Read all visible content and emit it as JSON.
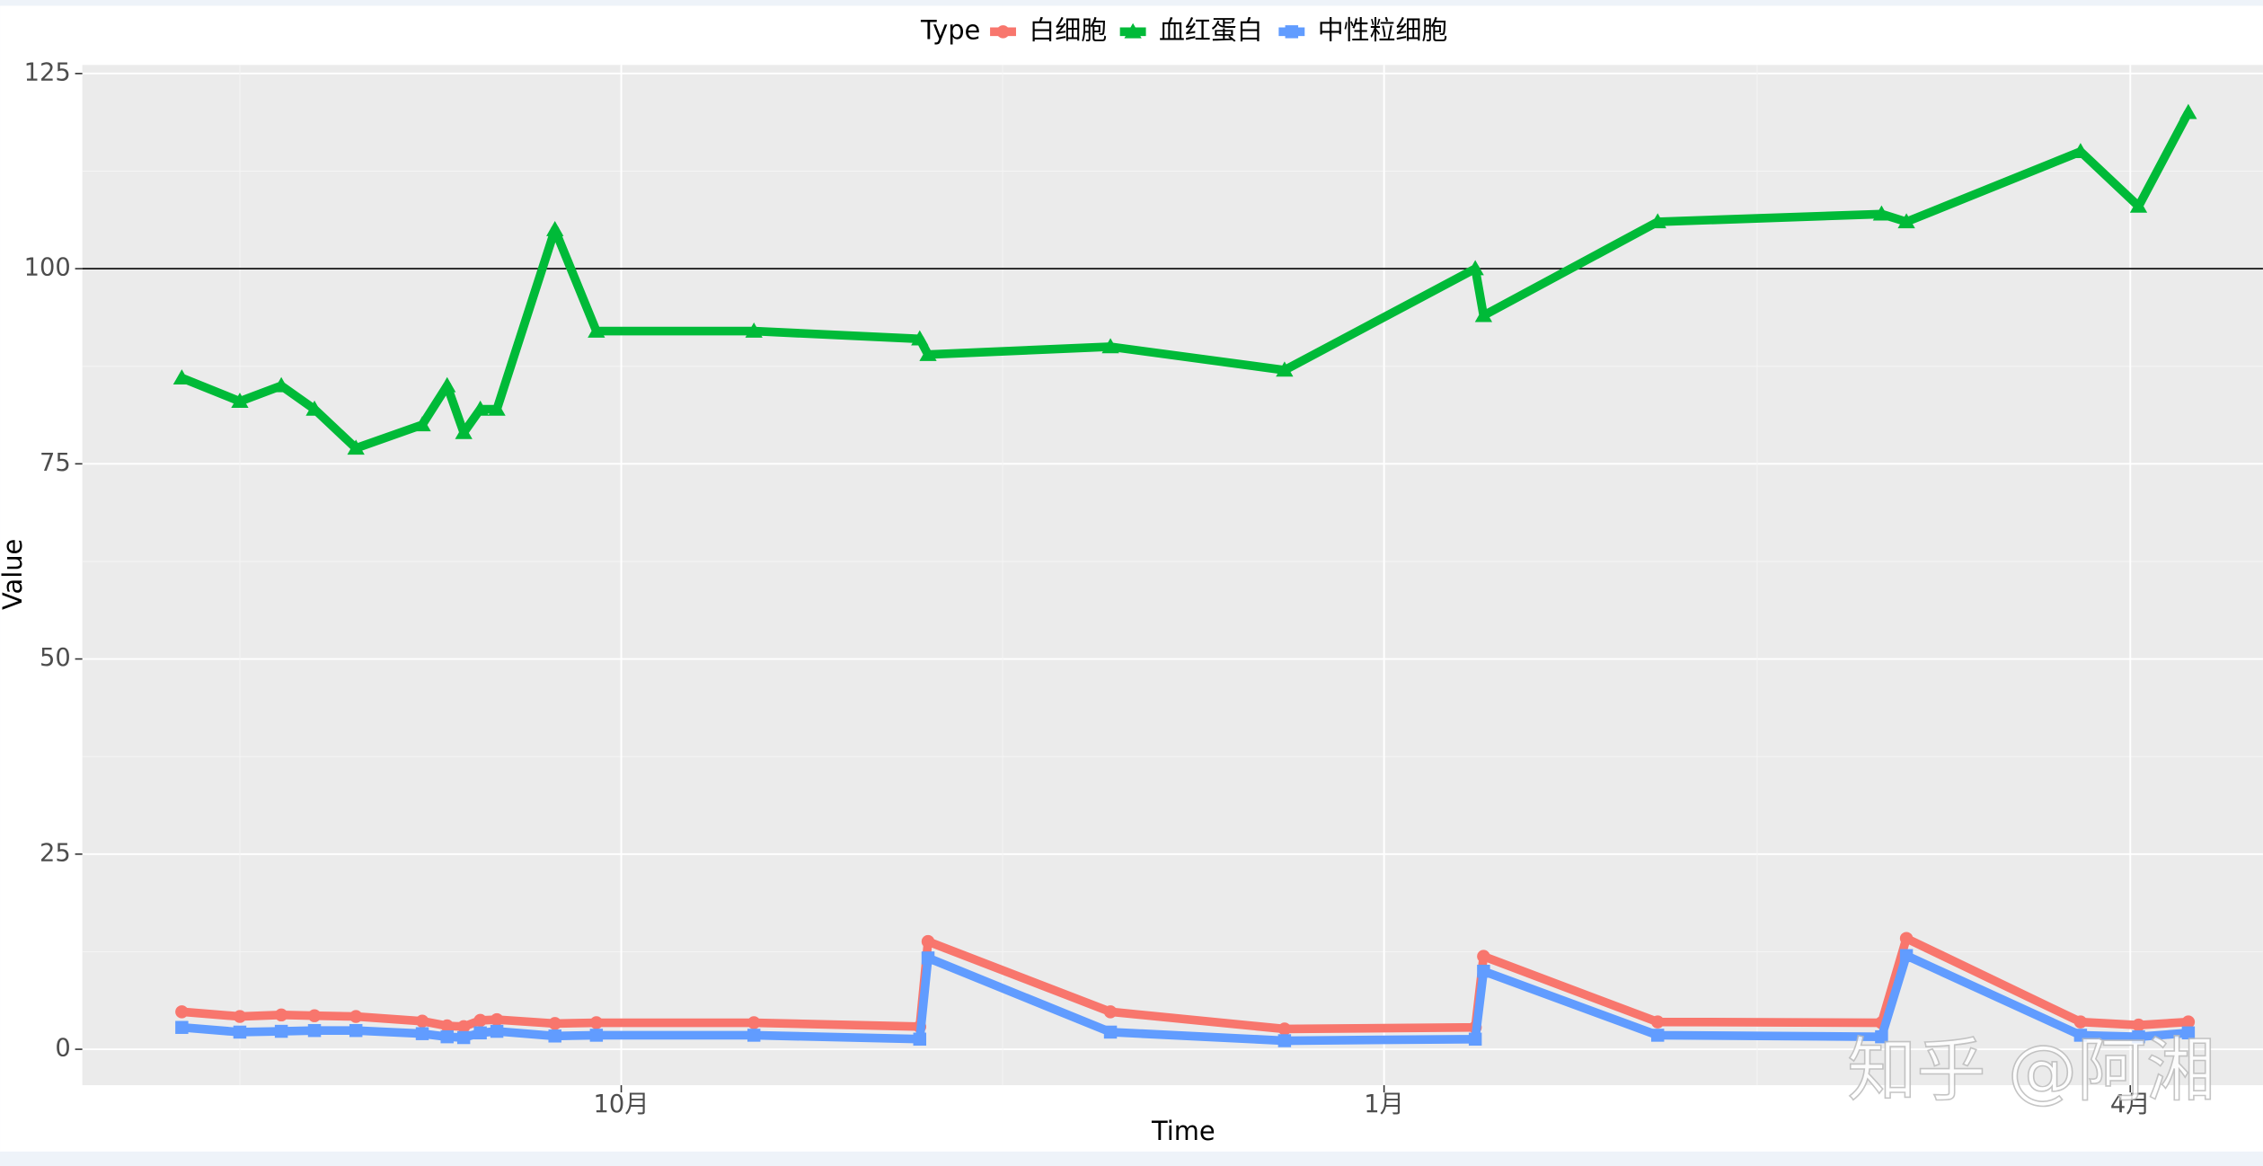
{
  "chart_data": {
    "type": "line",
    "x_label": "Time",
    "y_label": "Value",
    "legend_title": "Type",
    "watermark": "知乎 @阿湘",
    "x": [
      -53,
      -46,
      -41,
      -37,
      -32,
      -24,
      -21,
      -19,
      -17,
      -15,
      -8,
      -3,
      16,
      36,
      37,
      59,
      80,
      103,
      104,
      125,
      152,
      155,
      176,
      183,
      189
    ],
    "series": [
      {
        "name": "白细胞",
        "color": "#f8766d",
        "marker": "circle",
        "values": [
          4.8,
          4.2,
          4.4,
          4.3,
          4.2,
          3.6,
          3.0,
          2.9,
          3.7,
          3.8,
          3.3,
          3.4,
          3.4,
          2.9,
          13.8,
          4.8,
          2.6,
          2.8,
          11.9,
          3.5,
          3.4,
          14.2,
          3.5,
          3.1,
          3.5
        ]
      },
      {
        "name": "血红蛋白",
        "color": "#00ba38",
        "marker": "triangle",
        "values": [
          86,
          83,
          85,
          82,
          77,
          80,
          85,
          79,
          82,
          82,
          105,
          92,
          92,
          91,
          89,
          90,
          87,
          100,
          94,
          106,
          107,
          106,
          115,
          108,
          120
        ]
      },
      {
        "name": "中性粒细胞",
        "color": "#619cff",
        "marker": "square",
        "values": [
          2.8,
          2.2,
          2.3,
          2.4,
          2.4,
          2.0,
          1.6,
          1.5,
          2.1,
          2.3,
          1.7,
          1.8,
          1.8,
          1.3,
          11.7,
          2.2,
          1.1,
          1.3,
          10.0,
          1.8,
          1.6,
          12.0,
          1.8,
          1.6,
          2.1
        ]
      }
    ],
    "xlim": [
      -65,
      198
    ],
    "xticks": [
      {
        "value": 0,
        "label": "10月"
      },
      {
        "value": 92,
        "label": "1月"
      },
      {
        "value": 182,
        "label": "4月"
      }
    ],
    "ylim": [
      -4.6,
      126.1
    ],
    "yticks": [
      0,
      25,
      50,
      75,
      100,
      125
    ],
    "hline": 100,
    "grid": true,
    "legend_position": "top"
  }
}
